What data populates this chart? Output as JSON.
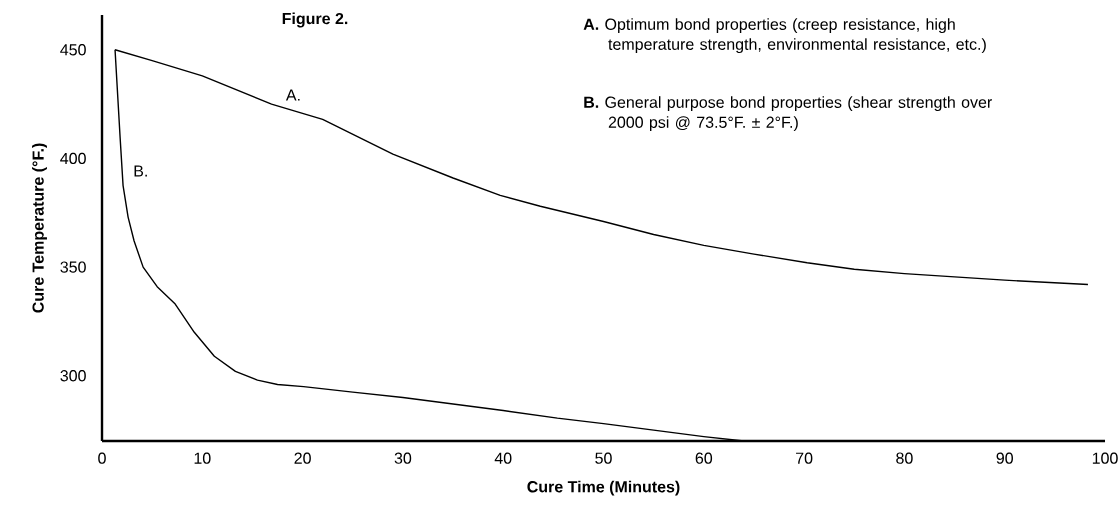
{
  "chart_data": {
    "type": "line",
    "title": "Figure 2.",
    "xlabel": "Cure Time (Minutes)",
    "ylabel": "Cure Temperature (°F.)",
    "xlim": [
      0,
      100
    ],
    "ylim": [
      270,
      466
    ],
    "xticks": [
      0,
      10,
      20,
      30,
      40,
      50,
      60,
      70,
      80,
      90,
      100
    ],
    "yticks": [
      300,
      350,
      400,
      450
    ],
    "series": [
      {
        "name": "A.",
        "color": "#000000",
        "x": [
          1.3,
          5,
          10,
          16.9,
          22,
          29,
          35,
          39.7,
          43.7,
          50,
          55,
          60,
          65,
          70.3,
          75,
          80,
          85,
          90,
          94,
          98.3
        ],
        "values": [
          450,
          445,
          438,
          425,
          418,
          402,
          391,
          383,
          378,
          371,
          365,
          360,
          356,
          352,
          349,
          347,
          345.5,
          344,
          343,
          342
        ]
      },
      {
        "name": "B.",
        "color": "#000000",
        "x": [
          1.3,
          1.8,
          2.1,
          2.6,
          3.2,
          4.1,
          5.5,
          7.3,
          9.2,
          11.2,
          13.3,
          15.5,
          17.5,
          20.1,
          25,
          30,
          35,
          40,
          45.4,
          50,
          55,
          60,
          64
        ],
        "values": [
          450,
          410,
          387.5,
          373,
          362,
          350,
          341,
          333,
          320,
          309,
          302,
          298,
          296,
          295,
          292.5,
          290,
          287,
          284,
          280.5,
          278,
          275,
          272,
          270
        ]
      }
    ],
    "annotations": [
      "**A.** Optimum bond properties (creep resistance, high temperature strength, environmental resistance, etc.)",
      "**B.** General purpose bond properties (shear strength over 2000 psi @ 73.5°F. ± 2°F.)"
    ]
  }
}
